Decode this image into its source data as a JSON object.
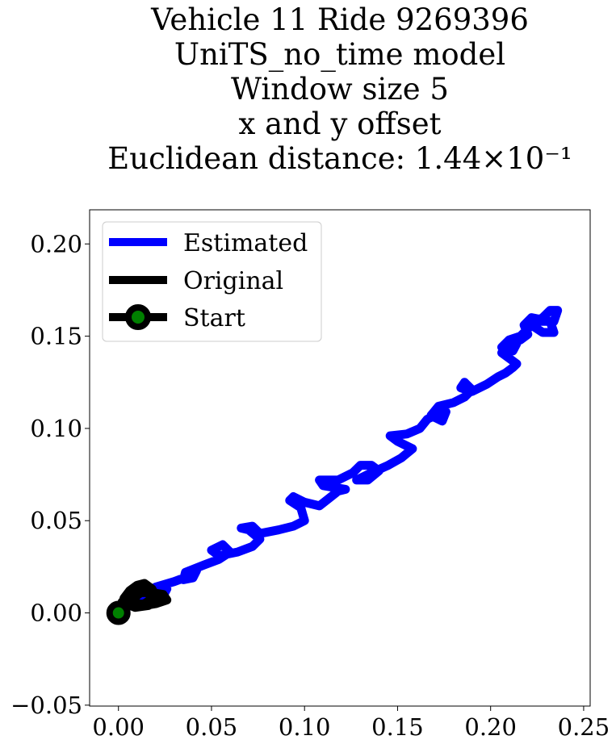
{
  "chart_data": {
    "type": "line",
    "title_lines": [
      "Vehicle 11 Ride 9269396",
      "UniTS_no_time model",
      "Window size 5",
      "x and y offset",
      "Euclidean distance: 1.44×10⁻¹"
    ],
    "xlabel": "",
    "ylabel": "",
    "xlim": [
      -0.0155,
      0.2535
    ],
    "ylim": [
      -0.0505,
      0.2185
    ],
    "xticks": [
      0.0,
      0.05,
      0.1,
      0.15,
      0.2,
      0.25
    ],
    "xtick_labels": [
      "0.00",
      "0.05",
      "0.10",
      "0.15",
      "0.20",
      "0.25"
    ],
    "yticks": [
      -0.05,
      0.0,
      0.05,
      0.1,
      0.15,
      0.2
    ],
    "ytick_labels": [
      "−0.05",
      "0.00",
      "0.05",
      "0.10",
      "0.15",
      "0.20"
    ],
    "grid": false,
    "legend_position": "upper-left",
    "series": [
      {
        "name": "Estimated",
        "color": "#0000ff",
        "points": [
          [
            0.0,
            0.0
          ],
          [
            0.006,
            0.004
          ],
          [
            0.012,
            0.007
          ],
          [
            0.02,
            0.011
          ],
          [
            0.026,
            0.013
          ],
          [
            0.024,
            0.009
          ],
          [
            0.018,
            0.009
          ],
          [
            0.02,
            0.014
          ],
          [
            0.03,
            0.017
          ],
          [
            0.038,
            0.02
          ],
          [
            0.042,
            0.023
          ],
          [
            0.04,
            0.019
          ],
          [
            0.035,
            0.018
          ],
          [
            0.036,
            0.022
          ],
          [
            0.046,
            0.026
          ],
          [
            0.054,
            0.029
          ],
          [
            0.06,
            0.033
          ],
          [
            0.056,
            0.037
          ],
          [
            0.05,
            0.034
          ],
          [
            0.054,
            0.031
          ],
          [
            0.064,
            0.033
          ],
          [
            0.072,
            0.036
          ],
          [
            0.076,
            0.04
          ],
          [
            0.07,
            0.045
          ],
          [
            0.066,
            0.046
          ],
          [
            0.072,
            0.047
          ],
          [
            0.076,
            0.043
          ],
          [
            0.086,
            0.045
          ],
          [
            0.094,
            0.047
          ],
          [
            0.1,
            0.05
          ],
          [
            0.098,
            0.057
          ],
          [
            0.092,
            0.061
          ],
          [
            0.094,
            0.063
          ],
          [
            0.1,
            0.06
          ],
          [
            0.108,
            0.058
          ],
          [
            0.113,
            0.062
          ],
          [
            0.118,
            0.066
          ],
          [
            0.122,
            0.067
          ],
          [
            0.11,
            0.069
          ],
          [
            0.108,
            0.072
          ],
          [
            0.118,
            0.072
          ],
          [
            0.126,
            0.076
          ],
          [
            0.13,
            0.08
          ],
          [
            0.136,
            0.08
          ],
          [
            0.14,
            0.077
          ],
          [
            0.134,
            0.072
          ],
          [
            0.128,
            0.072
          ],
          [
            0.136,
            0.076
          ],
          [
            0.145,
            0.08
          ],
          [
            0.152,
            0.084
          ],
          [
            0.158,
            0.089
          ],
          [
            0.15,
            0.093
          ],
          [
            0.146,
            0.096
          ],
          [
            0.155,
            0.097
          ],
          [
            0.162,
            0.1
          ],
          [
            0.166,
            0.105
          ],
          [
            0.172,
            0.108
          ],
          [
            0.176,
            0.109
          ],
          [
            0.174,
            0.104
          ],
          [
            0.168,
            0.107
          ],
          [
            0.172,
            0.112
          ],
          [
            0.18,
            0.114
          ],
          [
            0.186,
            0.117
          ],
          [
            0.19,
            0.121
          ],
          [
            0.186,
            0.125
          ],
          [
            0.184,
            0.122
          ],
          [
            0.19,
            0.12
          ],
          [
            0.198,
            0.124
          ],
          [
            0.204,
            0.128
          ],
          [
            0.208,
            0.13
          ],
          [
            0.212,
            0.133
          ],
          [
            0.214,
            0.135
          ],
          [
            0.21,
            0.138
          ],
          [
            0.206,
            0.141
          ],
          [
            0.208,
            0.145
          ],
          [
            0.214,
            0.146
          ],
          [
            0.212,
            0.142
          ],
          [
            0.206,
            0.144
          ],
          [
            0.21,
            0.148
          ],
          [
            0.216,
            0.15
          ],
          [
            0.22,
            0.154
          ],
          [
            0.224,
            0.158
          ],
          [
            0.228,
            0.16
          ],
          [
            0.232,
            0.164
          ],
          [
            0.236,
            0.164
          ],
          [
            0.234,
            0.158
          ],
          [
            0.226,
            0.158
          ],
          [
            0.222,
            0.156
          ],
          [
            0.228,
            0.152
          ],
          [
            0.234,
            0.152
          ],
          [
            0.232,
            0.158
          ],
          [
            0.222,
            0.16
          ],
          [
            0.218,
            0.156
          ],
          [
            0.22,
            0.151
          ],
          [
            0.216,
            0.148
          ]
        ]
      },
      {
        "name": "Original",
        "color": "#000000",
        "points": [
          [
            0.0,
            0.0
          ],
          [
            0.004,
            0.004
          ],
          [
            0.008,
            0.008
          ],
          [
            0.012,
            0.011
          ],
          [
            0.018,
            0.011
          ],
          [
            0.024,
            0.01
          ],
          [
            0.026,
            0.007
          ],
          [
            0.02,
            0.005
          ],
          [
            0.014,
            0.004
          ],
          [
            0.008,
            0.006
          ],
          [
            0.006,
            0.01
          ],
          [
            0.01,
            0.014
          ],
          [
            0.014,
            0.012
          ],
          [
            0.018,
            0.009
          ],
          [
            0.022,
            0.007
          ],
          [
            0.016,
            0.004
          ],
          [
            0.009,
            0.003
          ],
          [
            0.004,
            0.005
          ],
          [
            0.003,
            0.008
          ],
          [
            0.006,
            0.012
          ],
          [
            0.01,
            0.015
          ],
          [
            0.014,
            0.016
          ],
          [
            0.018,
            0.013
          ],
          [
            0.02,
            0.009
          ],
          [
            0.014,
            0.005
          ],
          [
            0.007,
            0.004
          ],
          [
            0.002,
            0.006
          ]
        ]
      }
    ],
    "legend": [
      {
        "label": "Estimated",
        "color": "#0000ff"
      },
      {
        "label": "Original",
        "color": "#000000"
      },
      {
        "label": "Start",
        "color": "#000000",
        "marker_color": "#008000"
      }
    ],
    "start_point": {
      "x": 0.0,
      "y": 0.0,
      "marker_face": "#008000",
      "marker_edge": "#000000"
    }
  }
}
